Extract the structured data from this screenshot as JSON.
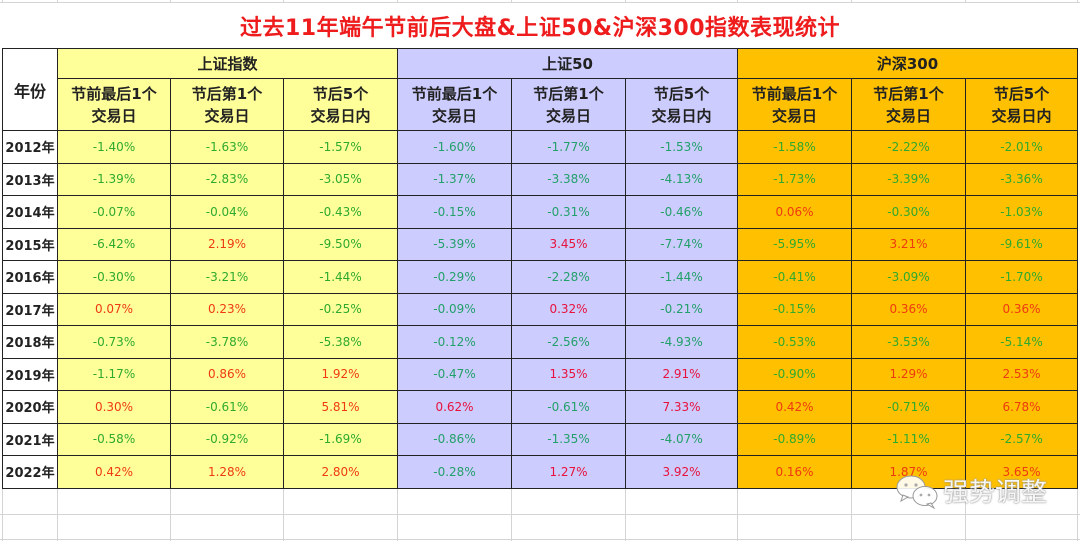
{
  "title": "过去11年端午节前后大盘&上证50&沪深300指数表现统计",
  "header": {
    "year_label": "年份",
    "groups": [
      {
        "name": "上证指数",
        "color": "#ffff99"
      },
      {
        "name": "上证50",
        "color": "#ccccff"
      },
      {
        "name": "沪深300",
        "color": "#ffc000"
      }
    ],
    "sub_columns": [
      {
        "line1": "节前最后1个",
        "line2": "交易日"
      },
      {
        "line1": "节后第1个",
        "line2": "交易日"
      },
      {
        "line1": "节后5个",
        "line2": "交易日内"
      }
    ]
  },
  "colors": {
    "positive": "#ee3a10",
    "negative": "#2eaa2e",
    "title": "#ee1c1c"
  },
  "rows": [
    {
      "year": "2012年",
      "values": [
        "-1.40%",
        "-1.63%",
        "-1.57%",
        "-1.60%",
        "-1.77%",
        "-1.53%",
        "-1.58%",
        "-2.22%",
        "-2.01%"
      ]
    },
    {
      "year": "2013年",
      "values": [
        "-1.39%",
        "-2.83%",
        "-3.05%",
        "-1.37%",
        "-3.38%",
        "-4.13%",
        "-1.73%",
        "-3.39%",
        "-3.36%"
      ]
    },
    {
      "year": "2014年",
      "values": [
        "-0.07%",
        "-0.04%",
        "-0.43%",
        "-0.15%",
        "-0.31%",
        "-0.46%",
        "0.06%",
        "-0.30%",
        "-1.03%"
      ]
    },
    {
      "year": "2015年",
      "values": [
        "-6.42%",
        "2.19%",
        "-9.50%",
        "-5.39%",
        "3.45%",
        "-7.74%",
        "-5.95%",
        "3.21%",
        "-9.61%"
      ]
    },
    {
      "year": "2016年",
      "values": [
        "-0.30%",
        "-3.21%",
        "-1.44%",
        "-0.29%",
        "-2.28%",
        "-1.44%",
        "-0.41%",
        "-3.09%",
        "-1.70%"
      ]
    },
    {
      "year": "2017年",
      "values": [
        "0.07%",
        "0.23%",
        "-0.25%",
        "-0.09%",
        "0.32%",
        "-0.21%",
        "-0.15%",
        "0.36%",
        "0.36%"
      ]
    },
    {
      "year": "2018年",
      "values": [
        "-0.73%",
        "-3.78%",
        "-5.38%",
        "-0.12%",
        "-2.56%",
        "-4.93%",
        "-0.53%",
        "-3.53%",
        "-5.14%"
      ]
    },
    {
      "year": "2019年",
      "values": [
        "-1.17%",
        "0.86%",
        "1.92%",
        "-0.47%",
        "1.35%",
        "2.91%",
        "-0.90%",
        "1.29%",
        "2.53%"
      ]
    },
    {
      "year": "2020年",
      "values": [
        "0.30%",
        "-0.61%",
        "5.81%",
        "0.62%",
        "-0.61%",
        "7.33%",
        "0.42%",
        "-0.71%",
        "6.78%"
      ]
    },
    {
      "year": "2021年",
      "values": [
        "-0.58%",
        "-0.92%",
        "-1.69%",
        "-0.86%",
        "-1.35%",
        "-4.07%",
        "-0.89%",
        "-1.11%",
        "-2.57%"
      ]
    },
    {
      "year": "2022年",
      "values": [
        "0.42%",
        "1.28%",
        "2.80%",
        "-0.28%",
        "1.27%",
        "3.92%",
        "0.16%",
        "1.87%",
        "3.65%"
      ]
    }
  ],
  "watermark": {
    "icon": "wechat-icon",
    "text": "强势调整"
  }
}
